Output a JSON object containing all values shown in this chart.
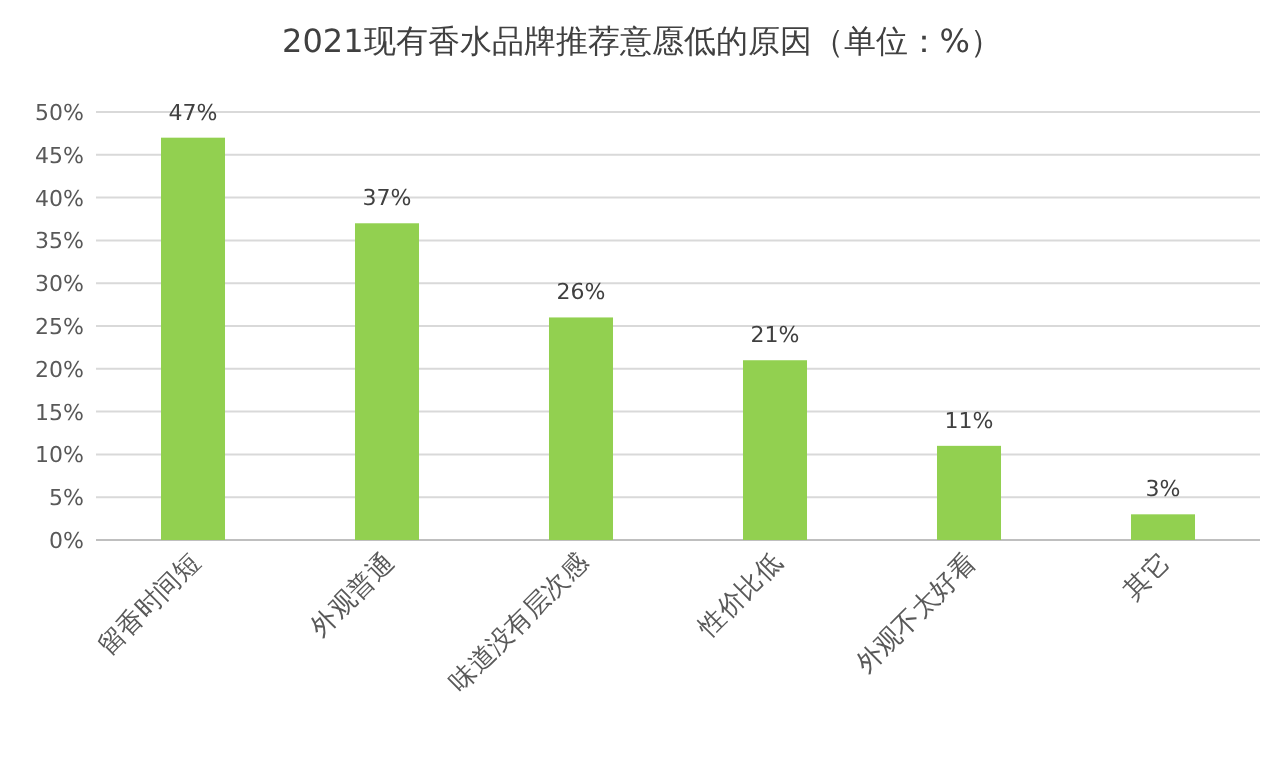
{
  "chart_data": {
    "type": "bar",
    "title": "2021现有香水品牌推荐意愿低的原因（单位：%）",
    "categories": [
      "留香时间短",
      "外观普通",
      "味道没有层次感",
      "性价比低",
      "外观不太好看",
      "其它"
    ],
    "values": [
      47,
      37,
      26,
      21,
      11,
      3
    ],
    "value_labels": [
      "47%",
      "37%",
      "26%",
      "21%",
      "11%",
      "3%"
    ],
    "color": "#92d050",
    "ylim": [
      0,
      50
    ],
    "yticks": [
      {
        "value": 0,
        "label": "0%"
      },
      {
        "value": 5,
        "label": "5%"
      },
      {
        "value": 10,
        "label": "10%"
      },
      {
        "value": 15,
        "label": "15%"
      },
      {
        "value": 20,
        "label": "20%"
      },
      {
        "value": 25,
        "label": "25%"
      },
      {
        "value": 30,
        "label": "30%"
      },
      {
        "value": 35,
        "label": "35%"
      },
      {
        "value": 40,
        "label": "40%"
      },
      {
        "value": 45,
        "label": "45%"
      },
      {
        "value": 50,
        "label": "50%"
      }
    ],
    "grid": "y"
  }
}
